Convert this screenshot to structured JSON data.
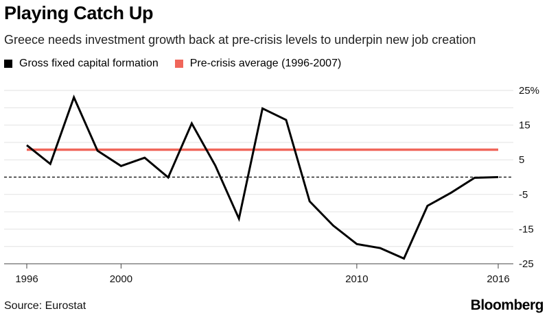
{
  "header": {
    "title": "Playing Catch Up",
    "subtitle": "Greece needs investment growth back at pre-crisis levels to underpin new job creation"
  },
  "legend": [
    {
      "label": "Gross fixed capital formation",
      "color": "#000000"
    },
    {
      "label": "Pre-crisis average (1996-2007)",
      "color": "#f0665a"
    }
  ],
  "footer": {
    "source": "Source: Eurostat",
    "brand": "Bloomberg"
  },
  "chart_data": {
    "type": "line",
    "title": "Playing Catch Up",
    "subtitle": "Greece needs investment growth back at pre-crisis levels to underpin new job creation",
    "xlabel": "",
    "ylabel": "",
    "x": [
      1996,
      1997,
      1998,
      1999,
      2000,
      2001,
      2002,
      2003,
      2004,
      2005,
      2006,
      2007,
      2008,
      2009,
      2010,
      2011,
      2012,
      2013,
      2014,
      2015,
      2016
    ],
    "series": [
      {
        "name": "Gross fixed capital formation",
        "color": "#000000",
        "values": [
          9.2,
          3.8,
          23.0,
          7.6,
          3.2,
          5.6,
          -0.1,
          15.5,
          3.3,
          -12.0,
          19.8,
          16.5,
          -7.0,
          -14.0,
          -19.3,
          -20.5,
          -23.5,
          -8.3,
          -4.5,
          -0.2,
          0.0
        ]
      },
      {
        "name": "Pre-crisis average (1996-2007)",
        "color": "#f0665a",
        "constant": 7.9
      }
    ],
    "zero_line": {
      "style": "dashed",
      "value": 0
    },
    "xticks": [
      1996,
      2000,
      2010,
      2016
    ],
    "yticks": [
      25,
      15,
      5,
      -5,
      -15,
      -25
    ],
    "ytick_labels": [
      "25%",
      "15",
      "5",
      "-5",
      "-15",
      "-25"
    ],
    "xlim": [
      1996,
      2016
    ],
    "ylim": [
      -25,
      25
    ],
    "grid": true,
    "legend_position": "top-left"
  }
}
